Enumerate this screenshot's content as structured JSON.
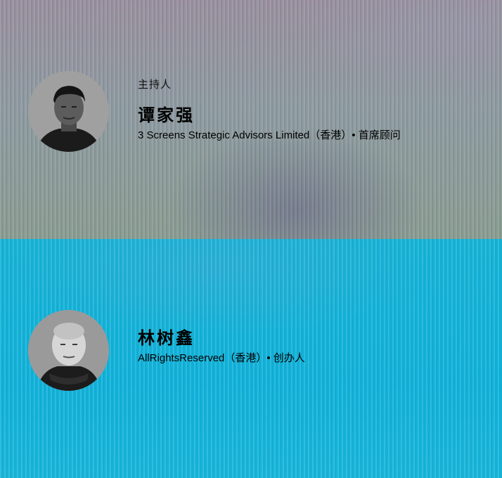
{
  "speakers": [
    {
      "role": "主持人",
      "name": "谭家强",
      "org": "3 Screens Strategic Advisors Limited（香港）• 首席顾问"
    },
    {
      "name": "林树鑫",
      "org": "AllRightsReserved（香港）• 创办人"
    }
  ],
  "colors": {
    "top_bg": "#928f9e",
    "bottom_bg": "#15b5db"
  }
}
